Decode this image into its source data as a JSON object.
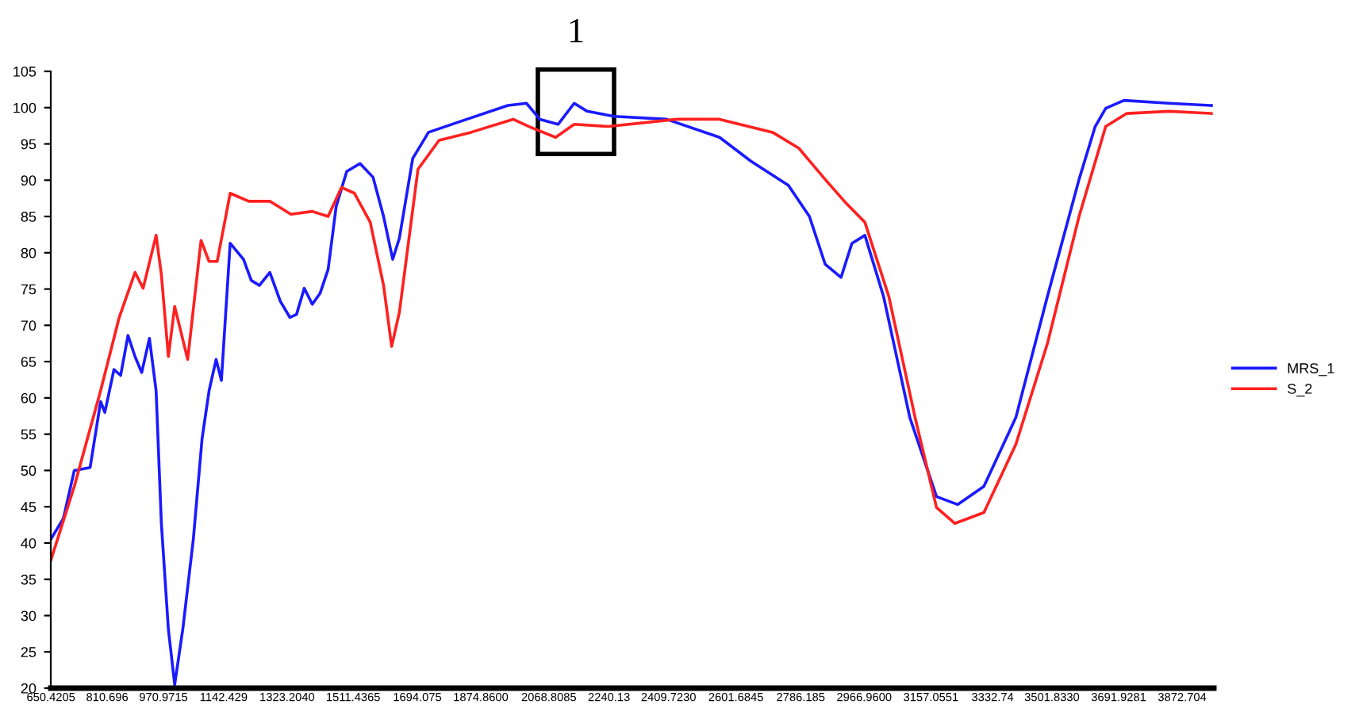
{
  "chart_data": {
    "type": "line",
    "xlim": [
      650,
      3963
    ],
    "ylim": [
      20,
      105
    ],
    "xticks": [
      {
        "value": 650.4205,
        "label": "650.4205"
      },
      {
        "value": 810.696,
        "label": "810.696"
      },
      {
        "value": 970.9715,
        "label": "970.9715"
      },
      {
        "value": 1142.429,
        "label": "1142.429"
      },
      {
        "value": 1323.204,
        "label": "1323.2040"
      },
      {
        "value": 1511.4365,
        "label": "1511.4365"
      },
      {
        "value": 1694.075,
        "label": "1694.075"
      },
      {
        "value": 1874.86,
        "label": "1874.8600"
      },
      {
        "value": 2068.8085,
        "label": "2068.8085"
      },
      {
        "value": 2240.13,
        "label": "2240.13"
      },
      {
        "value": 2409.723,
        "label": "2409.7230"
      },
      {
        "value": 2601.6845,
        "label": "2601.6845"
      },
      {
        "value": 2786.185,
        "label": "2786.185"
      },
      {
        "value": 2966.96,
        "label": "2966.9600"
      },
      {
        "value": 3157.0551,
        "label": "3157.0551"
      },
      {
        "value": 3332.74,
        "label": "3332.74"
      },
      {
        "value": 3501.833,
        "label": "3501.8330"
      },
      {
        "value": 3691.9281,
        "label": "3691.9281"
      },
      {
        "value": 3872.704,
        "label": "3872.704"
      }
    ],
    "yticks": [
      20,
      25,
      30,
      35,
      40,
      45,
      50,
      55,
      60,
      65,
      70,
      75,
      80,
      85,
      90,
      95,
      100,
      105
    ],
    "grid": false,
    "legend": "right",
    "line_style": "solid",
    "annotations": [
      "1"
    ],
    "series": [
      {
        "name": "MRS_1",
        "color": "#1a1aff",
        "x": [
          650,
          686,
          717,
          762,
          792,
          804,
          830,
          849,
          870,
          890,
          909,
          931,
          950,
          965,
          985,
          1003,
          1026,
          1056,
          1081,
          1101,
          1121,
          1136,
          1161,
          1199,
          1221,
          1244,
          1274,
          1304,
          1331,
          1350,
          1372,
          1395,
          1417,
          1440,
          1463,
          1493,
          1531,
          1568,
          1598,
          1624,
          1643,
          1681,
          1726,
          1817,
          1952,
          2005,
          2043,
          2095,
          2141,
          2178,
          2254,
          2404,
          2555,
          2645,
          2751,
          2811,
          2856,
          2901,
          2932,
          2969,
          3022,
          3097,
          3173,
          3233,
          3308,
          3399,
          3489,
          3579,
          3625,
          3655,
          3707,
          3835,
          3956
        ],
        "values": [
          40.5,
          43.4,
          50.0,
          50.4,
          59.5,
          58.0,
          63.9,
          63.1,
          68.6,
          65.7,
          63.5,
          68.2,
          61.0,
          42.7,
          28.1,
          20.5,
          28.1,
          40.5,
          54.4,
          61.0,
          65.3,
          62.4,
          81.3,
          79.1,
          76.2,
          75.5,
          77.3,
          73.3,
          71.1,
          71.5,
          75.1,
          72.9,
          74.4,
          77.7,
          86.4,
          91.2,
          92.3,
          90.4,
          85.0,
          79.1,
          82.0,
          93.0,
          96.6,
          98.1,
          100.3,
          100.6,
          98.4,
          97.7,
          100.6,
          99.5,
          98.8,
          98.4,
          95.9,
          92.6,
          89.3,
          85.0,
          78.4,
          76.6,
          81.3,
          82.4,
          74.0,
          57.3,
          46.4,
          45.3,
          47.8,
          57.3,
          74.0,
          90.1,
          97.4,
          99.9,
          101.0,
          100.6,
          100.3
        ]
      },
      {
        "name": "S_2",
        "color": "#ff2020",
        "x": [
          650,
          717,
          792,
          845,
          890,
          913,
          950,
          965,
          985,
          1003,
          1040,
          1078,
          1101,
          1124,
          1161,
          1214,
          1274,
          1334,
          1395,
          1440,
          1478,
          1515,
          1560,
          1598,
          1621,
          1643,
          1696,
          1756,
          1847,
          1967,
          2012,
          2088,
          2141,
          2238,
          2434,
          2555,
          2706,
          2781,
          2856,
          2916,
          2969,
          3037,
          3112,
          3173,
          3225,
          3308,
          3399,
          3489,
          3579,
          3655,
          3715,
          3835,
          3956
        ],
        "values": [
          37.6,
          47.8,
          61.0,
          71.1,
          77.3,
          75.1,
          82.4,
          77.0,
          65.7,
          72.6,
          65.3,
          81.7,
          78.8,
          78.8,
          88.2,
          87.1,
          87.1,
          85.3,
          85.7,
          85.0,
          89.0,
          88.2,
          84.2,
          75.5,
          67.1,
          71.8,
          91.5,
          95.5,
          96.6,
          98.4,
          97.4,
          95.9,
          97.7,
          97.4,
          98.4,
          98.4,
          96.6,
          94.4,
          90.1,
          86.8,
          84.2,
          74.0,
          57.3,
          44.9,
          42.7,
          44.2,
          53.6,
          67.5,
          85.0,
          97.4,
          99.2,
          99.5,
          99.2
        ]
      }
    ]
  }
}
